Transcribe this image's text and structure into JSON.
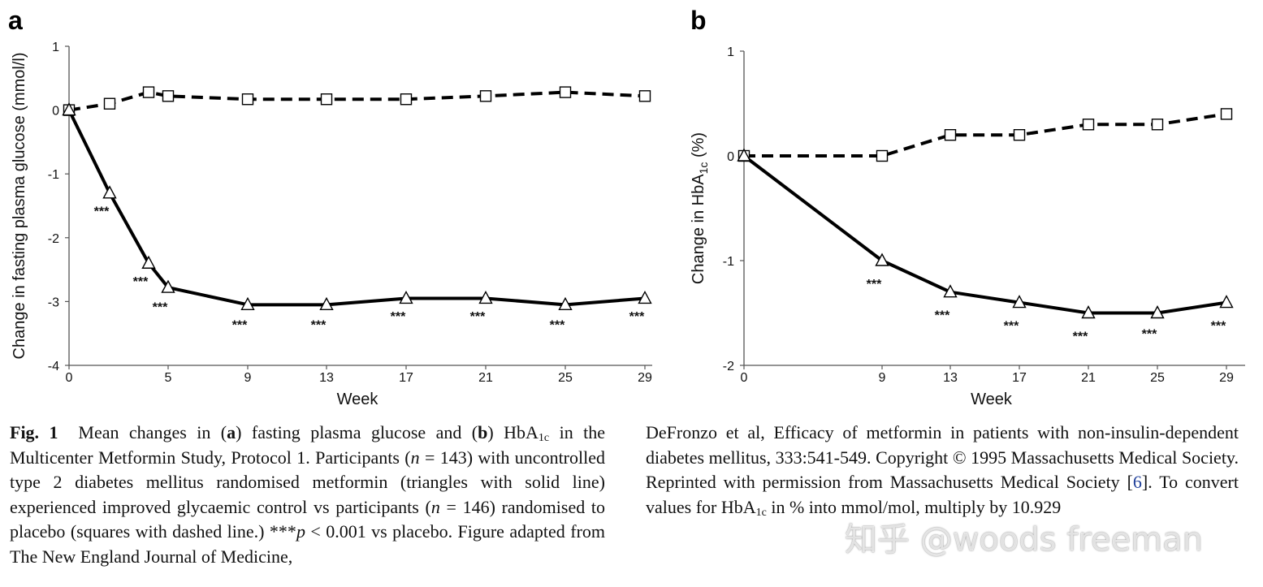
{
  "chart_data": [
    {
      "panel": "a",
      "type": "line",
      "xlabel": "Week",
      "ylabel": "Change in fasting plasma glucose (mmol/l)",
      "ylim": [
        -4,
        1
      ],
      "yticks": [
        1,
        0,
        -1,
        -2,
        -3,
        -4
      ],
      "ytick_labels": [
        "1",
        "0",
        "-1",
        "-2",
        "-3",
        "-4"
      ],
      "xlim": [
        0,
        29
      ],
      "xticks": [
        0,
        5,
        9,
        13,
        17,
        21,
        25,
        29
      ],
      "xtick_labels": [
        "0",
        "5",
        "9",
        "13",
        "17",
        "21",
        "25",
        "29"
      ],
      "series": [
        {
          "name": "Placebo",
          "marker": "square",
          "line": "dashed",
          "x": [
            0,
            2,
            4,
            5,
            9,
            13,
            17,
            21,
            25,
            29
          ],
          "y": [
            0,
            0.1,
            0.28,
            0.22,
            0.17,
            0.17,
            0.17,
            0.22,
            0.28,
            0.22
          ]
        },
        {
          "name": "Metformin",
          "marker": "triangle",
          "line": "solid",
          "x": [
            0,
            2,
            4,
            5,
            9,
            13,
            17,
            21,
            25,
            29
          ],
          "y": [
            0,
            -1.3,
            -2.4,
            -2.78,
            -3.05,
            -3.05,
            -2.95,
            -2.95,
            -3.05,
            -2.95
          ]
        }
      ],
      "significance": {
        "label": "***",
        "x": [
          2,
          4,
          5,
          9,
          13,
          17,
          21,
          25,
          29
        ],
        "y": [
          -1.55,
          -2.65,
          -3.05,
          -3.33,
          -3.33,
          -3.2,
          -3.2,
          -3.33,
          -3.2
        ]
      }
    },
    {
      "panel": "b",
      "type": "line",
      "xlabel": "Week",
      "ylabel_main": "Change in HbA",
      "ylabel_sub": "1c",
      "ylabel_unit": " (%)",
      "ylim": [
        -2,
        1
      ],
      "yticks": [
        1,
        0,
        -1,
        -2
      ],
      "ytick_labels": [
        "1",
        "0",
        "-1",
        "-2"
      ],
      "xlim": [
        0,
        29
      ],
      "xticks": [
        0,
        9,
        13,
        17,
        21,
        25,
        29
      ],
      "xtick_labels": [
        "0",
        "9",
        "13",
        "17",
        "21",
        "25",
        "29"
      ],
      "series": [
        {
          "name": "Placebo",
          "marker": "square",
          "line": "dashed",
          "x": [
            0,
            9,
            13,
            17,
            21,
            25,
            29
          ],
          "y": [
            0,
            0,
            0.2,
            0.2,
            0.3,
            0.3,
            0.4
          ]
        },
        {
          "name": "Metformin",
          "marker": "triangle",
          "line": "solid",
          "x": [
            0,
            9,
            13,
            17,
            21,
            25,
            29
          ],
          "y": [
            0,
            -1.0,
            -1.3,
            -1.4,
            -1.5,
            -1.5,
            -1.4
          ]
        }
      ],
      "significance": {
        "label": "***",
        "x": [
          9,
          13,
          17,
          21,
          25,
          29
        ],
        "y": [
          -1.2,
          -1.5,
          -1.6,
          -1.7,
          -1.68,
          -1.6
        ]
      }
    }
  ],
  "caption": {
    "fig_label": "Fig. 1",
    "t1": "Mean changes in (",
    "a": "a",
    "t2": ") fasting plasma glucose and (",
    "b": "b",
    "t3": ") HbA",
    "sub": "1c",
    "t4": " in the Multicenter Metformin Study, Protocol 1. Participants (",
    "n": "n",
    "t5": " = 143) with uncontrolled type 2 diabetes mellitus randomised metformin (triangles with solid line) experienced improved glycaemic control vs participants (",
    "t6": " = 146) randomised to placebo (squares with dashed line.) ***",
    "p": "p",
    "t7": " < 0.001 vs placebo. Figure adapted from The New England Journal of Medicine, ",
    "t8": "DeFronzo et al, Efficacy of metformin in patients with non-insulin-dependent diabetes mellitus, 333:541-549. Copyright © 1995 Massachusetts Medical Society. Reprinted with permission from Massachusetts Medical Society [",
    "ref": "6",
    "t9": "]. To convert values for HbA",
    "t10": " in % into mmol/mol, multiply by 10.929"
  },
  "watermark": "知乎 @woods freeman"
}
